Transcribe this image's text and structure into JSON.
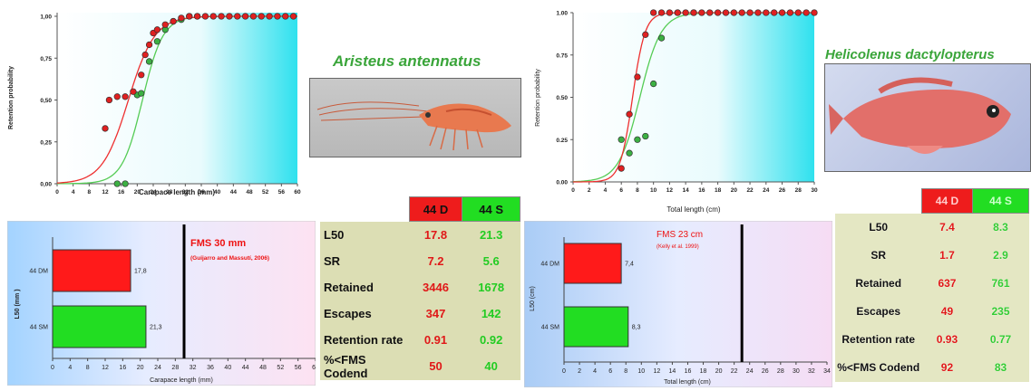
{
  "chart_data": [
    {
      "type": "scatter",
      "subject": "Aristeus antennatus",
      "xlabel": "Carapace length (mm)",
      "ylabel": "Retention probability",
      "xlim": [
        0,
        60
      ],
      "ylim": [
        0,
        1
      ],
      "x_ticks": [
        "0",
        "4",
        "8",
        "12",
        "16",
        "20",
        "24",
        "28",
        "32",
        "36",
        "40",
        "44",
        "48",
        "52",
        "56",
        "60"
      ],
      "y_ticks": [
        "0,00",
        "0,25",
        "0,50",
        "0,75",
        "1,00"
      ],
      "series": [
        {
          "name": "44 D",
          "color": "#e02020",
          "points": [
            [
              12,
              0.33
            ],
            [
              13,
              0.5
            ],
            [
              15,
              0.52
            ],
            [
              17,
              0.52
            ],
            [
              19,
              0.55
            ],
            [
              21,
              0.65
            ],
            [
              22,
              0.77
            ],
            [
              23,
              0.83
            ],
            [
              24,
              0.9
            ],
            [
              25,
              0.92
            ],
            [
              27,
              0.95
            ],
            [
              29,
              0.97
            ],
            [
              31,
              0.99
            ],
            [
              33,
              1
            ],
            [
              35,
              1
            ],
            [
              37,
              1
            ],
            [
              39,
              1
            ],
            [
              41,
              1
            ],
            [
              43,
              1
            ],
            [
              45,
              1
            ],
            [
              47,
              1
            ],
            [
              49,
              1
            ],
            [
              51,
              1
            ],
            [
              53,
              1
            ],
            [
              55,
              1
            ],
            [
              57,
              1
            ],
            [
              59,
              1
            ]
          ],
          "curve": {
            "l50": 17.8,
            "sr": 7.2
          }
        },
        {
          "name": "44 S",
          "color": "#3cb043",
          "points": [
            [
              15,
              0
            ],
            [
              17,
              0
            ],
            [
              20,
              0.53
            ],
            [
              21,
              0.54
            ],
            [
              23,
              0.73
            ],
            [
              25,
              0.85
            ],
            [
              27,
              0.92
            ],
            [
              29,
              0.97
            ],
            [
              31,
              0.98
            ],
            [
              33,
              1
            ],
            [
              35,
              1
            ]
          ],
          "curve": {
            "l50": 21.3,
            "sr": 5.6
          }
        }
      ]
    },
    {
      "type": "scatter",
      "subject": "Helicolenus dactylopterus",
      "xlabel": "Total length (cm)",
      "ylabel": "Retention probability",
      "xlim": [
        0,
        30
      ],
      "ylim": [
        0,
        1
      ],
      "x_ticks": [
        "0",
        "2",
        "4",
        "6",
        "8",
        "10",
        "12",
        "14",
        "16",
        "18",
        "20",
        "22",
        "24",
        "26",
        "28",
        "30"
      ],
      "y_ticks": [
        "0.00",
        "0.25",
        "0.50",
        "0.75",
        "1.00"
      ],
      "series": [
        {
          "name": "44 D",
          "color": "#e02020",
          "points": [
            [
              6,
              0.08
            ],
            [
              7,
              0.4
            ],
            [
              8,
              0.62
            ],
            [
              9,
              0.87
            ],
            [
              10,
              1
            ],
            [
              11,
              1
            ],
            [
              12,
              1
            ],
            [
              13,
              1
            ],
            [
              14,
              1
            ],
            [
              15,
              1
            ],
            [
              16,
              1
            ],
            [
              17,
              1
            ],
            [
              18,
              1
            ],
            [
              19,
              1
            ],
            [
              20,
              1
            ],
            [
              21,
              1
            ],
            [
              22,
              1
            ],
            [
              23,
              1
            ],
            [
              24,
              1
            ],
            [
              25,
              1
            ],
            [
              26,
              1
            ],
            [
              27,
              1
            ],
            [
              28,
              1
            ],
            [
              29,
              1
            ],
            [
              30,
              1
            ]
          ],
          "curve": {
            "l50": 7.4,
            "sr": 1.7
          }
        },
        {
          "name": "44 S",
          "color": "#3cb043",
          "points": [
            [
              6,
              0.25
            ],
            [
              7,
              0.17
            ],
            [
              8,
              0.25
            ],
            [
              9,
              0.27
            ],
            [
              10,
              0.58
            ],
            [
              11,
              0.85
            ],
            [
              13,
              1
            ],
            [
              15,
              1
            ]
          ],
          "curve": {
            "l50": 8.3,
            "sr": 2.9
          }
        }
      ]
    },
    {
      "type": "bar",
      "orientation": "horizontal",
      "subject": "Aristeus antennatus",
      "categories": [
        "44 DM",
        "44 SM"
      ],
      "values": [
        17.8,
        21.3
      ],
      "value_labels": [
        "17,8",
        "21,3"
      ],
      "colors": [
        "#ff1a1a",
        "#22dd22"
      ],
      "xlabel": "Carapace length (mm)",
      "ylabel": "L50 (mm )",
      "xlim": [
        0,
        60
      ],
      "x_ticks": [
        "0",
        "4",
        "8",
        "12",
        "16",
        "20",
        "24",
        "28",
        "32",
        "36",
        "40",
        "44",
        "48",
        "52",
        "56",
        "60"
      ],
      "reference_line": {
        "value": 30,
        "label": "FMS 30 mm",
        "source": "(Guijarro and Massutí, 2006)"
      }
    },
    {
      "type": "bar",
      "orientation": "horizontal",
      "subject": "Helicolenus dactylopterus",
      "categories": [
        "44 DM",
        "44 SM"
      ],
      "values": [
        7.4,
        8.3
      ],
      "value_labels": [
        "7,4",
        "8,3"
      ],
      "colors": [
        "#ff1a1a",
        "#22dd22"
      ],
      "xlabel": "Total length (cm)",
      "ylabel": "L50 (cm)",
      "xlim": [
        0,
        34
      ],
      "x_ticks": [
        "0",
        "2",
        "4",
        "6",
        "8",
        "10",
        "12",
        "14",
        "16",
        "18",
        "20",
        "22",
        "24",
        "26",
        "28",
        "30",
        "32",
        "34"
      ],
      "reference_line": {
        "value": 23,
        "label": "FMS 23 cm",
        "source": "(Kelly et al. 1999)"
      }
    }
  ],
  "titles": {
    "left": "Aristeus antennatus",
    "right": "Helicolenus dactylopterus"
  },
  "table_left": {
    "headers": [
      "44 D",
      "44 S"
    ],
    "rows": [
      {
        "label": "L50",
        "d": "17.8",
        "s": "21.3"
      },
      {
        "label": "SR",
        "d": "7.2",
        "s": "5.6"
      },
      {
        "label": "Retained",
        "d": "3446",
        "s": "1678"
      },
      {
        "label": "Escapes",
        "d": "347",
        "s": "142"
      },
      {
        "label": "Retention rate",
        "d": "0.91",
        "s": "0.92"
      },
      {
        "label": "%<FMS Codend",
        "d": "50",
        "s": "40"
      }
    ]
  },
  "table_right": {
    "headers": [
      "44 D",
      "44 S"
    ],
    "rows": [
      {
        "label": "L50",
        "d": "7.4",
        "s": "8.3"
      },
      {
        "label": "SR",
        "d": "1.7",
        "s": "2.9"
      },
      {
        "label": "Retained",
        "d": "637",
        "s": "761"
      },
      {
        "label": "Escapes",
        "d": "49",
        "s": "235"
      },
      {
        "label": "Retention rate",
        "d": "0.93",
        "s": "0.77"
      },
      {
        "label": "%<FMS Codend",
        "d": "92",
        "s": "83"
      }
    ]
  }
}
